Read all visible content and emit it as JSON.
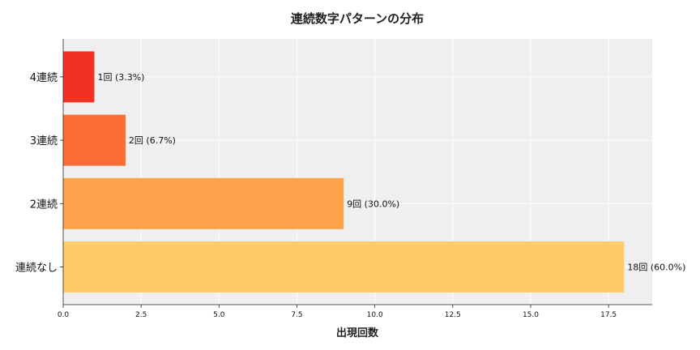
{
  "chart_data": {
    "type": "bar",
    "orientation": "horizontal",
    "title": "連続数字パターンの分布",
    "xlabel": "出現回数",
    "ylabel": "",
    "categories": [
      "連続なし",
      "2連続",
      "3連続",
      "4連続"
    ],
    "values": [
      18,
      9,
      2,
      1
    ],
    "data_labels": [
      "18回 (60.0%)",
      "9回 (30.0%)",
      "2回 (6.7%)",
      "1回 (3.3%)"
    ],
    "colors": [
      "#fecb6b",
      "#fda14a",
      "#fd6c34",
      "#f03224"
    ],
    "xlim": [
      0,
      18.9
    ],
    "xticks": [
      "0.0",
      "2.5",
      "5.0",
      "7.5",
      "10.0",
      "12.5",
      "15.0",
      "17.5"
    ],
    "grid": true,
    "background": "#efefef"
  }
}
